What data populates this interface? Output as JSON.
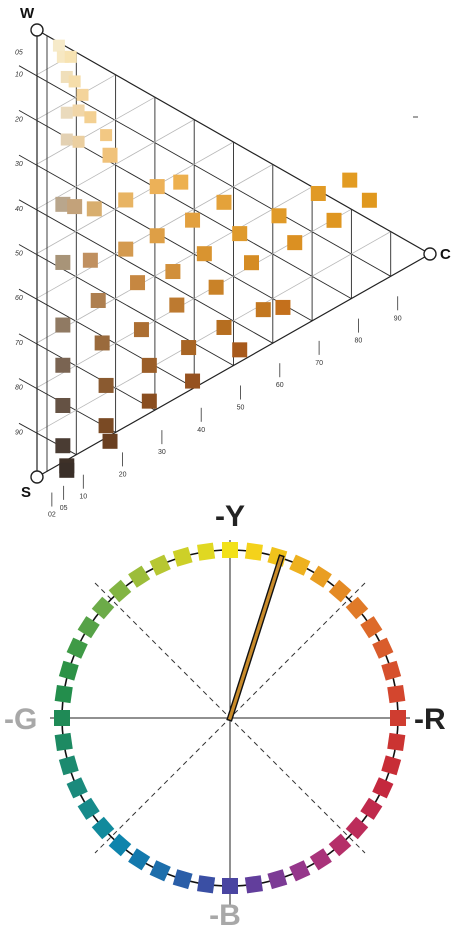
{
  "triangle": {
    "vertices": {
      "top": "W",
      "bottom": "S",
      "right": "C"
    },
    "left_scale": [
      "05",
      "10",
      "20",
      "30",
      "40",
      "50",
      "60",
      "70",
      "80",
      "90"
    ],
    "bottom_scale": [
      "02",
      "05",
      "10",
      "20",
      "30",
      "40",
      "50",
      "60",
      "70",
      "80",
      "90"
    ],
    "hue_color": "#e0962a",
    "samples": [
      {
        "w": 96,
        "c": 1,
        "color": "#f6eac9"
      },
      {
        "w": 93,
        "c": 2,
        "color": "#f7e8c2"
      },
      {
        "w": 92,
        "c": 4,
        "color": "#f7e3b2"
      },
      {
        "w": 88,
        "c": 3,
        "color": "#f0dfba"
      },
      {
        "w": 86,
        "c": 5,
        "color": "#f5ddaa"
      },
      {
        "w": 82,
        "c": 7,
        "color": "#f4d49b"
      },
      {
        "w": 80,
        "c": 3,
        "color": "#eadabc"
      },
      {
        "w": 79,
        "c": 6,
        "color": "#f1d6a8"
      },
      {
        "w": 76,
        "c": 9,
        "color": "#f3d092"
      },
      {
        "w": 74,
        "c": 3,
        "color": "#e3d1b3"
      },
      {
        "w": 72,
        "c": 6,
        "color": "#ebcfa0"
      },
      {
        "w": 70,
        "c": 13,
        "color": "#f2c883"
      },
      {
        "w": 65,
        "c": 14,
        "color": "#f0c27a"
      },
      {
        "w": 60,
        "c": 2,
        "color": "#b9a68c"
      },
      {
        "w": 58,
        "c": 5,
        "color": "#c3a27a"
      },
      {
        "w": 55,
        "c": 10,
        "color": "#d8ae6e"
      },
      {
        "w": 53,
        "c": 18,
        "color": "#e8b463"
      },
      {
        "w": 52,
        "c": 26,
        "color": "#ecb158"
      },
      {
        "w": 50,
        "c": 32,
        "color": "#edb04e"
      },
      {
        "w": 47,
        "c": 2,
        "color": "#a89478"
      },
      {
        "w": 44,
        "c": 9,
        "color": "#c09060"
      },
      {
        "w": 42,
        "c": 18,
        "color": "#d49a4f"
      },
      {
        "w": 41,
        "c": 26,
        "color": "#de9f46"
      },
      {
        "w": 40,
        "c": 35,
        "color": "#e2a03f"
      },
      {
        "w": 40,
        "c": 43,
        "color": "#e4a23a"
      },
      {
        "w": 33,
        "c": 2,
        "color": "#907a63"
      },
      {
        "w": 34,
        "c": 11,
        "color": "#ae7f4f"
      },
      {
        "w": 33,
        "c": 21,
        "color": "#c68741"
      },
      {
        "w": 31,
        "c": 30,
        "color": "#d18f3a"
      },
      {
        "w": 31,
        "c": 38,
        "color": "#d99430"
      },
      {
        "w": 31,
        "c": 47,
        "color": "#df9a2c"
      },
      {
        "w": 30,
        "c": 57,
        "color": "#e09a28"
      },
      {
        "w": 30,
        "c": 67,
        "color": "#e19a24"
      },
      {
        "w": 29,
        "c": 75,
        "color": "#e29b22"
      },
      {
        "w": 24,
        "c": 2,
        "color": "#7a6452"
      },
      {
        "w": 24,
        "c": 12,
        "color": "#9a6a3c"
      },
      {
        "w": 22,
        "c": 22,
        "color": "#ac6e32"
      },
      {
        "w": 23,
        "c": 31,
        "color": "#bd7a30"
      },
      {
        "w": 22,
        "c": 41,
        "color": "#c98228"
      },
      {
        "w": 23,
        "c": 50,
        "color": "#d58c24"
      },
      {
        "w": 22,
        "c": 61,
        "color": "#db9022"
      },
      {
        "w": 22,
        "c": 71,
        "color": "#df9620"
      },
      {
        "w": 22,
        "c": 80,
        "color": "#e0981e"
      },
      {
        "w": 15,
        "c": 2,
        "color": "#655244"
      },
      {
        "w": 14,
        "c": 13,
        "color": "#8a5a30"
      },
      {
        "w": 13,
        "c": 24,
        "color": "#9b5e28"
      },
      {
        "w": 12,
        "c": 34,
        "color": "#a86524"
      },
      {
        "w": 12,
        "c": 43,
        "color": "#b66e20"
      },
      {
        "w": 11,
        "c": 53,
        "color": "#c37720"
      },
      {
        "w": 9,
        "c": 58,
        "color": "#c4701c"
      },
      {
        "w": 6,
        "c": 2,
        "color": "#4a3c33"
      },
      {
        "w": 5,
        "c": 13,
        "color": "#7a4a24"
      },
      {
        "w": 5,
        "c": 24,
        "color": "#8a4e20"
      },
      {
        "w": 4,
        "c": 35,
        "color": "#965220"
      },
      {
        "w": 5,
        "c": 47,
        "color": "#a85a1c"
      },
      {
        "w": 1,
        "c": 3,
        "color": "#3e3128"
      },
      {
        "w": 1,
        "c": 14,
        "color": "#6a3f20"
      },
      {
        "w": 0,
        "c": 3,
        "color": "#3a2f28"
      }
    ]
  },
  "circle": {
    "labels": {
      "top": "-Y",
      "right": "-R",
      "bottom": "-B",
      "left": "-G"
    },
    "label_colors": {
      "top": "#222222",
      "right": "#222222",
      "bottom": "#a8a8a8",
      "left": "#a8a8a8"
    },
    "indicator_color": "#c98b2a",
    "swatches": [
      "#f2e11a",
      "#f4d21b",
      "#f0c21c",
      "#eeb11f",
      "#e99e22",
      "#e48a25",
      "#e07a28",
      "#dd6a2a",
      "#d95c2c",
      "#d6502d",
      "#d3462e",
      "#cf3d30",
      "#cb3432",
      "#c82d36",
      "#c4283e",
      "#c02a4c",
      "#bc2c5a",
      "#b52f69",
      "#a9337a",
      "#96378b",
      "#7c3b95",
      "#623e9c",
      "#4a45a1",
      "#3a4fa4",
      "#2a5ea8",
      "#1d6eab",
      "#1479ad",
      "#0e84ac",
      "#118a9c",
      "#178a8a",
      "#1a8a7c",
      "#1c8a6f",
      "#1d8a62",
      "#1f8a56",
      "#238e4c",
      "#2d9246",
      "#3f9a46",
      "#56a247",
      "#6cab48",
      "#82b443",
      "#9cbd3a",
      "#b7c732",
      "#cdd028",
      "#e0d822"
    ]
  }
}
